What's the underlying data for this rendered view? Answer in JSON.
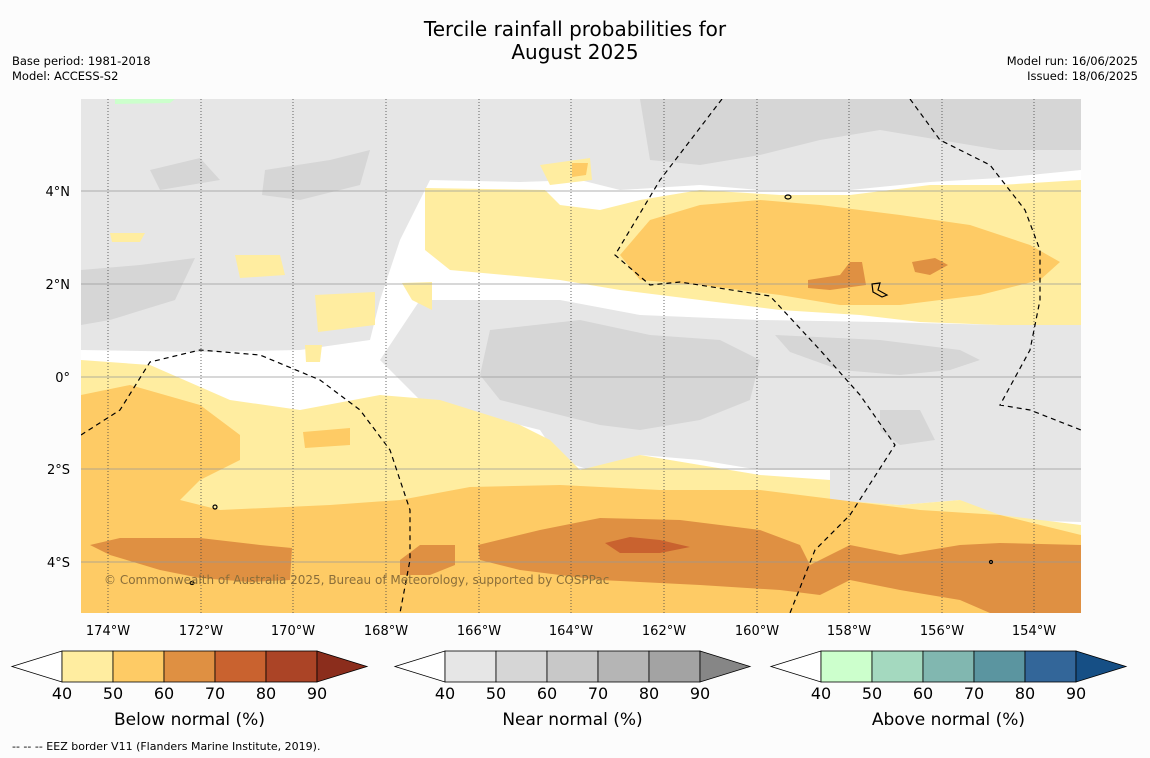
{
  "title_line1": "Tercile rainfall probabilities for",
  "title_line2": "August 2025",
  "base_period": "Base period: 1981-2018",
  "model": "Model: ACCESS-S2",
  "model_run": "Model run: 16/06/2025",
  "issued": "Issued: 18/06/2025",
  "copyright": "© Commonwealth of Australia 2025, Bureau of Meteorology, supported by COSPPac",
  "footer": "--  --  -- EEZ border V11 (Flanders Marine Institute, 2019).",
  "lon_labels": [
    "174°W",
    "172°W",
    "170°W",
    "168°W",
    "166°W",
    "164°W",
    "162°W",
    "160°W",
    "158°W",
    "156°W",
    "154°W"
  ],
  "lat_labels": [
    "4°N",
    "2°N",
    "0°",
    "2°S",
    "4°S"
  ],
  "colorbars": [
    {
      "title": "Below normal (%)",
      "ticks": [
        "40",
        "50",
        "60",
        "70",
        "80",
        "90"
      ],
      "colors": [
        "#ffffff",
        "#ffeda0",
        "#fecb65",
        "#df9042",
        "#c9622f",
        "#ab4426",
        "#8b2d1c"
      ]
    },
    {
      "title": "Near normal (%)",
      "ticks": [
        "40",
        "50",
        "60",
        "70",
        "80",
        "90"
      ],
      "colors": [
        "#ffffff",
        "#e6e6e6",
        "#d6d6d6",
        "#c8c8c8",
        "#b5b5b5",
        "#a3a3a3",
        "#868686"
      ]
    },
    {
      "title": "Above normal (%)",
      "ticks": [
        "40",
        "50",
        "60",
        "70",
        "80",
        "90"
      ],
      "colors": [
        "#ffffff",
        "#ccffcc",
        "#a4d9bf",
        "#81b7b0",
        "#5b95a0",
        "#336699",
        "#164f85"
      ]
    }
  ]
}
